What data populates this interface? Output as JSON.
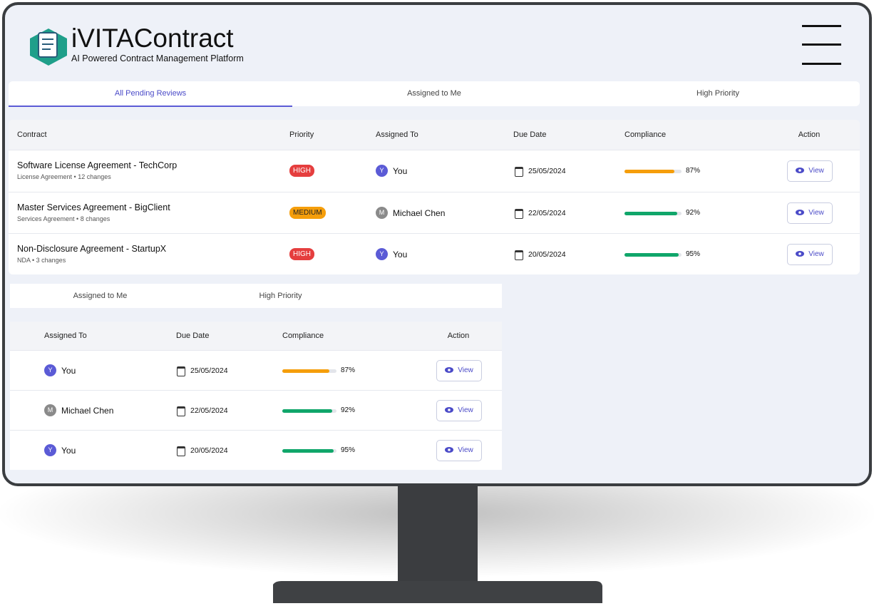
{
  "header": {
    "title": "iVITAContract",
    "subtitle": "AI Powered Contract Management Platform"
  },
  "tabs": [
    "All Pending Reviews",
    "Assigned to Me",
    "High Priority"
  ],
  "table": {
    "columns": [
      "Contract",
      "Priority",
      "Assigned To",
      "Due Date",
      "Compliance",
      "Action"
    ],
    "action_label": "View",
    "rows": [
      {
        "contract": "Software License Agreement - TechCorp",
        "details": "License Agreement • 12 changes",
        "priority": "HIGH",
        "priority_color": "#e53e3e",
        "initial": "Y",
        "avatar_color": "#5b5bd6",
        "assignee": "You",
        "due": "25/05/2024",
        "compliance": {
          "value": 87,
          "label": "87%"
        },
        "bar_color": "#f59e0b"
      },
      {
        "contract": "Master Services Agreement - BigClient",
        "details": "Services Agreement • 8 changes",
        "priority": "MEDIUM",
        "priority_color": "#f59e0b",
        "initial": "M",
        "avatar_color": "#8a8a8a",
        "assignee": "Michael Chen",
        "due": "22/05/2024",
        "compliance": {
          "value": 92,
          "label": "92%"
        },
        "bar_color": "#10a66a"
      },
      {
        "contract": "Non-Disclosure Agreement - StartupX",
        "details": "NDA • 3 changes",
        "priority": "HIGH",
        "priority_color": "#e53e3e",
        "initial": "Y",
        "avatar_color": "#5b5bd6",
        "assignee": "You",
        "due": "20/05/2024",
        "compliance": {
          "value": 95,
          "label": "95%"
        },
        "bar_color": "#10a66a"
      }
    ]
  }
}
